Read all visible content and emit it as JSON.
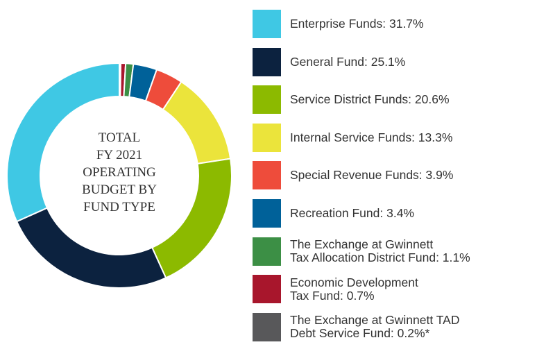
{
  "chart_data": {
    "type": "donut",
    "title": "TOTAL\nFY 2021\nOPERATING\nBUDGET BY\nFUND TYPE",
    "categories": [
      "Enterprise Funds: 31.7%",
      "General Fund: 25.1%",
      "Service District Funds: 20.6%",
      "Internal Service Funds: 13.3%",
      "Special Revenue Funds: 3.9%",
      "Recreation Fund: 3.4%",
      "The Exchange at Gwinnett\nTax Allocation District Fund: 1.1%",
      "Economic Development\nTax Fund: 0.7%",
      "The Exchange at Gwinnett TAD\nDebt Service Fund: 0.2%*"
    ],
    "values": [
      31.7,
      25.1,
      20.6,
      13.3,
      3.9,
      3.4,
      1.1,
      0.7,
      0.2
    ],
    "colors": [
      "#3fc8e4",
      "#0c223f",
      "#8cba00",
      "#ebe43b",
      "#ee4c3b",
      "#006199",
      "#3c8f45",
      "#a8162c",
      "#58585a"
    ]
  }
}
